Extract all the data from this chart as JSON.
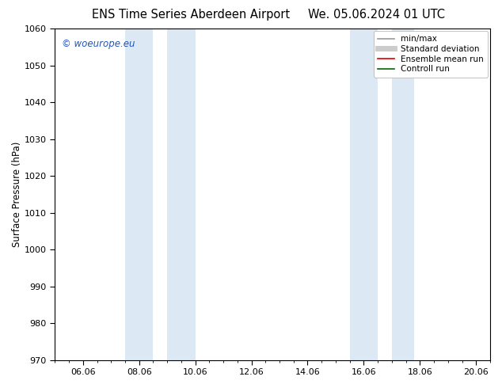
{
  "title_left": "ENS Time Series Aberdeen Airport",
  "title_right": "We. 05.06.2024 01 UTC",
  "ylabel": "Surface Pressure (hPa)",
  "ylim": [
    970,
    1060
  ],
  "yticks": [
    970,
    980,
    990,
    1000,
    1010,
    1020,
    1030,
    1040,
    1050,
    1060
  ],
  "xlim": [
    0,
    15.5
  ],
  "xtick_labels": [
    "06.06",
    "08.06",
    "10.06",
    "12.06",
    "14.06",
    "16.06",
    "18.06",
    "20.06"
  ],
  "xtick_positions": [
    1,
    3,
    5,
    7,
    9,
    11,
    13,
    15
  ],
  "shaded_bands": [
    {
      "x_start": 2.5,
      "x_end": 3.5
    },
    {
      "x_start": 4.0,
      "x_end": 5.0
    },
    {
      "x_start": 10.5,
      "x_end": 11.5
    },
    {
      "x_start": 12.0,
      "x_end": 12.8
    }
  ],
  "shaded_color": "#dce9f5",
  "background_color": "#ffffff",
  "plot_bg_color": "#ffffff",
  "watermark_text": "© woeurope.eu",
  "watermark_color": "#2255bb",
  "legend_entries": [
    {
      "label": "min/max",
      "color": "#999999",
      "lw": 1.2,
      "style": "solid"
    },
    {
      "label": "Standard deviation",
      "color": "#cccccc",
      "lw": 5,
      "style": "solid"
    },
    {
      "label": "Ensemble mean run",
      "color": "#dd0000",
      "lw": 1.2,
      "style": "solid"
    },
    {
      "label": "Controll run",
      "color": "#006600",
      "lw": 1.2,
      "style": "solid"
    }
  ],
  "tick_color": "#000000",
  "spine_color": "#000000",
  "font_size_title": 10.5,
  "font_size_axis": 8.5,
  "font_size_tick": 8,
  "font_size_legend": 7.5,
  "font_size_watermark": 8.5
}
